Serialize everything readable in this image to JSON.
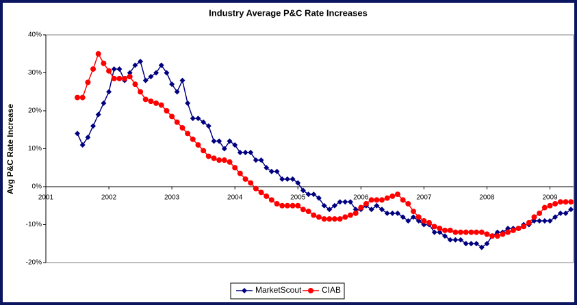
{
  "chart_data": {
    "type": "line",
    "title": "Industry Average P&C Rate Increases",
    "y_label": "Avg P&C Rate Increase",
    "x": [
      2001.5,
      2001.583,
      2001.667,
      2001.75,
      2001.833,
      2001.917,
      2002,
      2002.083,
      2002.167,
      2002.25,
      2002.333,
      2002.417,
      2002.5,
      2002.583,
      2002.667,
      2002.75,
      2002.833,
      2002.917,
      2003,
      2003.083,
      2003.167,
      2003.25,
      2003.333,
      2003.417,
      2003.5,
      2003.583,
      2003.667,
      2003.75,
      2003.833,
      2003.917,
      2004,
      2004.083,
      2004.167,
      2004.25,
      2004.333,
      2004.417,
      2004.5,
      2004.583,
      2004.667,
      2004.75,
      2004.833,
      2004.917,
      2005,
      2005.083,
      2005.167,
      2005.25,
      2005.333,
      2005.417,
      2005.5,
      2005.583,
      2005.667,
      2005.75,
      2005.833,
      2005.917,
      2006,
      2006.083,
      2006.167,
      2006.25,
      2006.333,
      2006.417,
      2006.5,
      2006.583,
      2006.667,
      2006.75,
      2006.833,
      2006.917,
      2007,
      2007.083,
      2007.167,
      2007.25,
      2007.333,
      2007.417,
      2007.5,
      2007.583,
      2007.667,
      2007.75,
      2007.833,
      2007.917,
      2008,
      2008.083,
      2008.167,
      2008.25,
      2008.333,
      2008.417,
      2008.5,
      2008.583,
      2008.667,
      2008.75,
      2008.833,
      2008.917,
      2009,
      2009.083,
      2009.167,
      2009.25,
      2009.333
    ],
    "series": [
      {
        "name": "MarketScout",
        "color": "#000080",
        "marker": "diamond",
        "values": [
          14,
          11,
          13,
          16,
          19,
          22,
          25,
          31,
          31,
          28,
          30,
          32,
          33,
          28,
          29,
          30,
          32,
          30,
          27,
          25,
          28,
          22,
          18,
          18,
          17,
          16,
          12,
          12,
          10,
          12,
          11,
          9,
          9,
          9,
          7,
          7,
          5,
          4,
          4,
          2,
          2,
          2,
          1,
          -1,
          -2,
          -2,
          -3,
          -5,
          -6,
          -5,
          -4,
          -4,
          -4,
          -6,
          -6,
          -5,
          -6,
          -5,
          -6,
          -7,
          -7,
          -7,
          -8,
          -9,
          -8,
          -9,
          -10,
          -10,
          -12,
          -12,
          -13,
          -14,
          -14,
          -14,
          -15,
          -15,
          -15,
          -16,
          -15,
          -13,
          -12,
          -12,
          -11,
          -11,
          -11,
          -10,
          -10,
          -9,
          -9,
          -9,
          -9,
          -8,
          -7,
          -7,
          -6
        ]
      },
      {
        "name": "CIAB",
        "color": "#ff0000",
        "marker": "circle",
        "values": [
          23.5,
          23.5,
          27.5,
          31,
          35,
          32.5,
          30.5,
          28.5,
          28.5,
          28.5,
          29,
          27,
          25,
          23,
          22.5,
          22,
          21.5,
          20,
          18.5,
          17,
          15.5,
          14,
          12.5,
          11,
          9.5,
          8,
          7.5,
          7,
          7,
          6.5,
          5,
          3.5,
          2,
          1,
          -0.5,
          -1.5,
          -2.5,
          -3.5,
          -4.5,
          -5,
          -5,
          -5,
          -5,
          -6,
          -6.5,
          -7.5,
          -8,
          -8.5,
          -8.5,
          -8.5,
          -8.5,
          -8,
          -7.5,
          -7,
          -5.5,
          -4.5,
          -3.5,
          -3.5,
          -3.5,
          -3,
          -2.5,
          -2,
          -3.5,
          -4.5,
          -6.5,
          -8,
          -9,
          -9.5,
          -10.5,
          -11,
          -11.5,
          -11.5,
          -12,
          -12,
          -12,
          -12,
          -12,
          -12,
          -12.5,
          -13,
          -13,
          -12.5,
          -12,
          -11.5,
          -11,
          -10.5,
          -9.5,
          -8,
          -7,
          -5.5,
          -5,
          -4.5,
          -4,
          -4,
          -4
        ]
      }
    ],
    "xlim": [
      2001,
      2009.375
    ],
    "xticks": [
      2001,
      2002,
      2003,
      2004,
      2005,
      2006,
      2007,
      2008,
      2009
    ],
    "ylim": [
      -20,
      40
    ],
    "yticks": [
      {
        "value": -20,
        "label": "-20%"
      },
      {
        "value": -10,
        "label": "-10%"
      },
      {
        "value": 0,
        "label": "0%"
      },
      {
        "value": 10,
        "label": "10%"
      },
      {
        "value": 20,
        "label": "20%"
      },
      {
        "value": 30,
        "label": "30%"
      },
      {
        "value": 40,
        "label": "40%"
      }
    ],
    "grid": false,
    "legend": "bottom"
  }
}
